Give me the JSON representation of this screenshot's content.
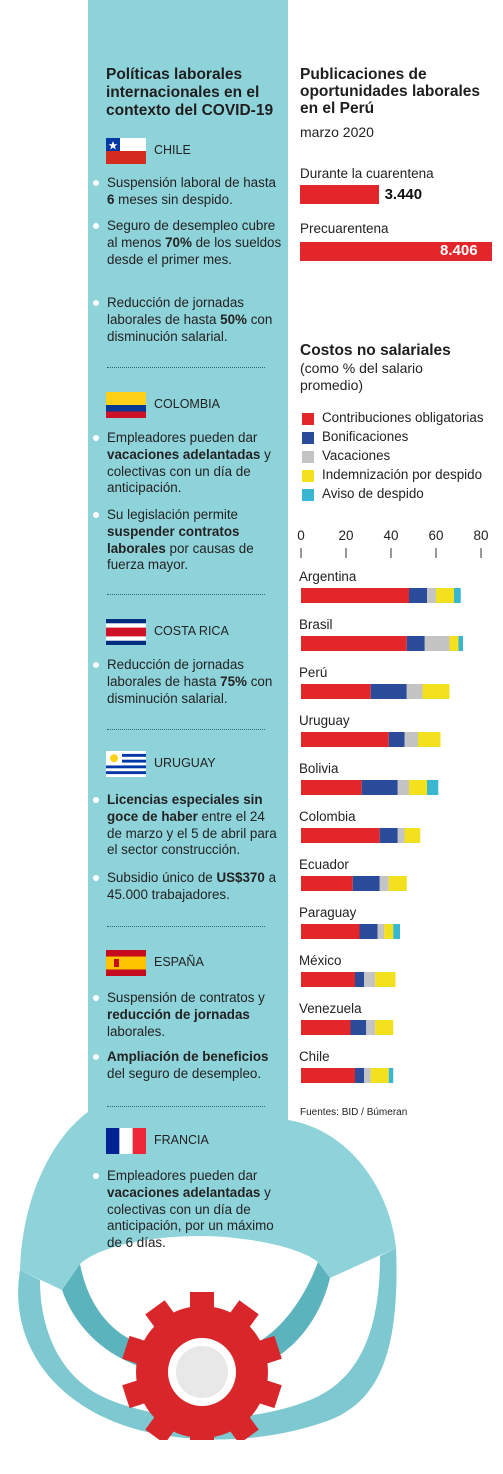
{
  "left": {
    "title": "Políticas laborales internacionales en el contexto del COVID-19",
    "countries": [
      {
        "name": "CHILE",
        "flag": "chile-flag",
        "bullets": [
          [
            "Suspensión laboral de hasta ",
            "6",
            " meses sin despido."
          ],
          [
            "Seguro de desempleo cubre al menos ",
            "70%",
            " de los sueldos desde el primer mes."
          ],
          [
            "Reducción de jornadas laborales de hasta ",
            "50%",
            " con disminución salarial."
          ]
        ]
      },
      {
        "name": "COLOMBIA",
        "flag": "colombia-flag",
        "bullets": [
          [
            "Empleadores pueden dar ",
            "vacaciones adelantadas",
            " y colectivas con un día de anticipación."
          ],
          [
            "Su legislación permite ",
            "suspender contratos laborales",
            " por causas de fuerza mayor."
          ]
        ]
      },
      {
        "name": "COSTA RICA",
        "flag": "costa-rica-flag",
        "bullets": [
          [
            "Reducción de jornadas laborales de hasta ",
            "75%",
            " con disminución salarial."
          ]
        ]
      },
      {
        "name": "URUGUAY",
        "flag": "uruguay-flag",
        "bullets": [
          [
            "",
            "Licencias especiales sin goce de haber",
            " entre el 24 de marzo y el 5 de abril para el sector construcción."
          ],
          [
            "Subsidio único de ",
            "US$370",
            " a 45.000 trabajadores."
          ]
        ]
      },
      {
        "name": "ESPAÑA",
        "flag": "spain-flag",
        "bullets": [
          [
            "Suspensión de contratos y ",
            "reducción de jornadas",
            " laborales."
          ],
          [
            "",
            "Ampliación de beneficios",
            " del seguro de desempleo."
          ]
        ]
      },
      {
        "name": "FRANCIA",
        "flag": "france-flag",
        "bullets": [
          [
            "Empleadores pueden dar ",
            "vacaciones adelantadas",
            " y colectivas con un día de anticipación, por un máximo de 6 días."
          ]
        ]
      }
    ]
  },
  "chart_data": [
    {
      "type": "bar",
      "title": "Publicaciones de oportunidades laborales en el Perú",
      "subtitle": "marzo 2020",
      "categories": [
        "Durante la cuarentena",
        "Precuarentena"
      ],
      "values": [
        3440,
        8406
      ],
      "value_labels": [
        "3.440",
        "8.406"
      ],
      "color": "#e2262a"
    },
    {
      "type": "bar",
      "stacked": true,
      "orientation": "horizontal",
      "title": "Costos no salariales",
      "subtitle": "(como % del salario promedio)",
      "xlim": [
        0,
        80
      ],
      "ticks": [
        0,
        20,
        40,
        60,
        80
      ],
      "tick_labels": [
        "0",
        "20",
        "40",
        "60",
        "80"
      ],
      "legend_position": "top",
      "categories": [
        "Argentina",
        "Brasil",
        "Perú",
        "Uruguay",
        "Bolivia",
        "Colombia",
        "Ecuador",
        "Paraguay",
        "México",
        "Venezuela",
        "Chile"
      ],
      "series": [
        {
          "name": "Contribuciones obligatorias",
          "color": "#e2262a",
          "values": [
            48,
            47,
            31,
            39,
            27,
            35,
            23,
            26,
            24,
            22,
            24
          ]
        },
        {
          "name": "Bonificaciones",
          "color": "#2b4b9b",
          "values": [
            8,
            8,
            16,
            7,
            16,
            8,
            12,
            8,
            4,
            7,
            4
          ]
        },
        {
          "name": "Vacaciones",
          "color": "#c4c4c4",
          "values": [
            4,
            11,
            7,
            6,
            5,
            3,
            4,
            3,
            5,
            4,
            3
          ]
        },
        {
          "name": "Indemnización por despido",
          "color": "#f4e11e",
          "values": [
            8,
            4,
            12,
            10,
            8,
            7,
            8,
            4,
            9,
            8,
            8
          ]
        },
        {
          "name": "Aviso de despido",
          "color": "#38b7d3",
          "values": [
            3,
            2,
            0,
            0,
            5,
            0,
            0,
            3,
            0,
            0,
            2
          ]
        }
      ]
    }
  ],
  "source": "Fuentes: BID / Búmeran"
}
